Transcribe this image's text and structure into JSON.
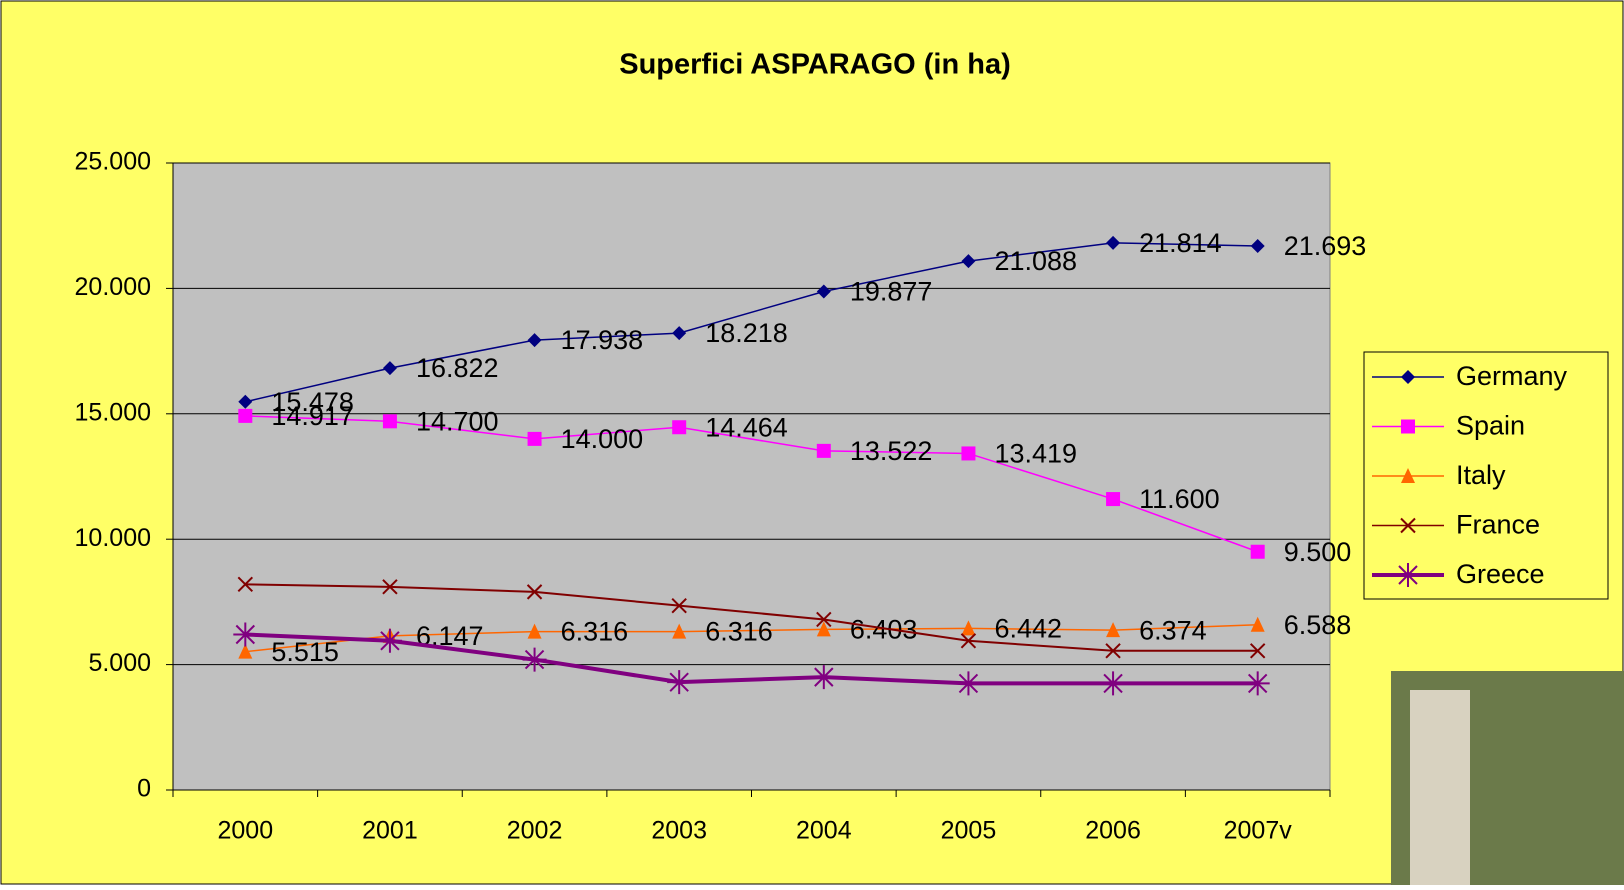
{
  "chart_data": {
    "type": "line",
    "title": "Superfici ASPARAGO (in ha)",
    "categories": [
      "2000",
      "2001",
      "2002",
      "2003",
      "2004",
      "2005",
      "2006",
      "2007v"
    ],
    "ylim": [
      0,
      25000
    ],
    "yticks": [
      0,
      {
        "value": 5000,
        "label": "5.000"
      },
      {
        "value": 10000,
        "label": "10.000"
      },
      {
        "value": 15000,
        "label": "15.000"
      },
      {
        "value": 20000,
        "label": "20.000"
      },
      {
        "value": 25000,
        "label": "25.000"
      }
    ],
    "grid": true,
    "legend": "right",
    "series": [
      {
        "name": "Germany",
        "color": "#000080",
        "marker": "diamond",
        "values": [
          15478,
          16822,
          17938,
          18218,
          19877,
          21088,
          21814,
          21693
        ],
        "value_labels": [
          "15.478",
          "16.822",
          "17.938",
          "18.218",
          "19.877",
          "21.088",
          "21.814",
          "21.693"
        ]
      },
      {
        "name": "Spain",
        "color": "#ff00ff",
        "marker": "square",
        "values": [
          14917,
          14700,
          14000,
          14464,
          13522,
          13419,
          11600,
          9500
        ],
        "value_labels": [
          "14.917",
          "14.700",
          "14.000",
          "14.464",
          "13.522",
          "13.419",
          "11.600",
          "9.500"
        ]
      },
      {
        "name": "Italy",
        "color": "#ff6600",
        "marker": "triangle",
        "values": [
          5515,
          6147,
          6316,
          6316,
          6403,
          6442,
          6374,
          6588
        ],
        "value_labels": [
          "5.515",
          "6.147",
          "6.316",
          "6.316",
          "6.403",
          "6.442",
          "6.374",
          "6.588"
        ]
      },
      {
        "name": "France",
        "color": "#800000",
        "marker": "x",
        "values": [
          8200,
          8100,
          7900,
          7350,
          6800,
          5950,
          5550,
          5550
        ]
      },
      {
        "name": "Greece",
        "color": "#800080",
        "marker": "star",
        "values": [
          6200,
          5950,
          5200,
          4300,
          4500,
          4250,
          4250,
          4250
        ]
      }
    ]
  }
}
